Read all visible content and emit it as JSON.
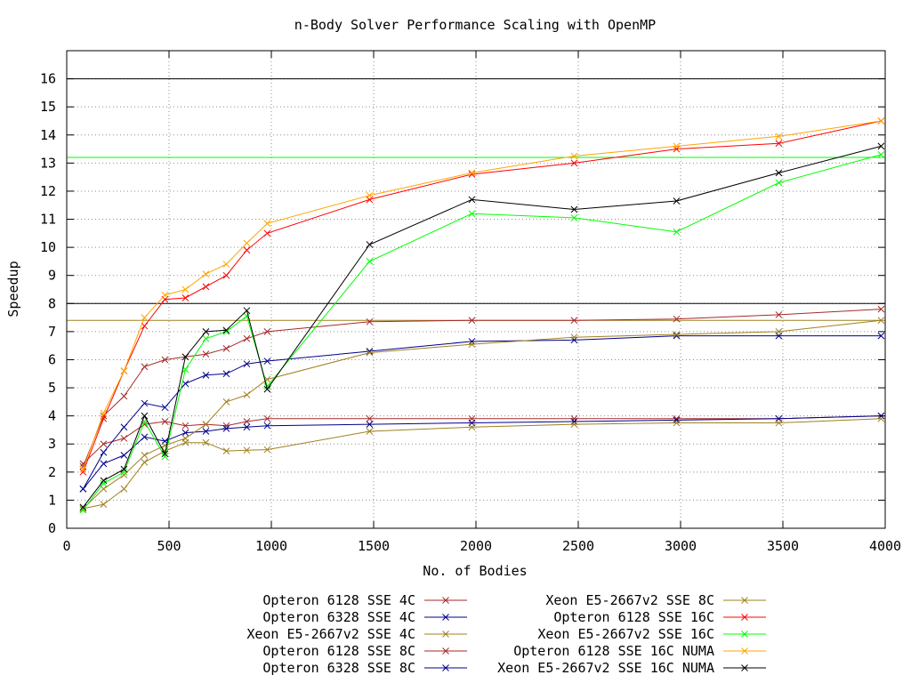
{
  "chart_data": {
    "type": "line",
    "title": "n-Body Solver Performance Scaling with OpenMP",
    "xlabel": "No. of Bodies",
    "ylabel": "Speedup",
    "xlim": [
      0,
      4000
    ],
    "ylim": [
      0,
      17
    ],
    "xticks": [
      0,
      500,
      1000,
      1500,
      2000,
      2500,
      3000,
      3500,
      4000
    ],
    "yticks": [
      0,
      1,
      2,
      3,
      4,
      5,
      6,
      7,
      8,
      9,
      10,
      11,
      12,
      13,
      14,
      15,
      16
    ],
    "grid": true,
    "grid_style": "dotted",
    "legend_position": "bottom",
    "reference_lines": [
      {
        "y": 16,
        "color": "#000000"
      },
      {
        "y": 13.2,
        "color": "#00ff00"
      },
      {
        "y": 8,
        "color": "#000000"
      },
      {
        "y": 7.4,
        "color": "#a08020"
      }
    ],
    "x": [
      80,
      180,
      280,
      380,
      480,
      580,
      680,
      780,
      880,
      980,
      1480,
      1980,
      2480,
      2980,
      3480,
      3980
    ],
    "series": [
      {
        "name": "Opteron 6128 SSE 4C",
        "color": "#a52a2a",
        "values": [
          2.3,
          3.0,
          3.2,
          3.7,
          3.8,
          3.65,
          3.7,
          3.65,
          3.8,
          3.9,
          3.9,
          3.9,
          3.9,
          3.9,
          3.9,
          4.0
        ]
      },
      {
        "name": "Opteron 6328 SSE 4C",
        "color": "#00008b",
        "values": [
          1.4,
          2.3,
          2.6,
          3.25,
          3.1,
          3.4,
          3.45,
          3.55,
          3.6,
          3.65,
          3.7,
          3.75,
          3.8,
          3.85,
          3.9,
          4.0
        ]
      },
      {
        "name": "Xeon E5-2667v2 SSE 4C",
        "color": "#a08020",
        "values": [
          0.7,
          0.85,
          1.4,
          2.35,
          2.75,
          3.05,
          3.05,
          2.75,
          2.78,
          2.8,
          3.45,
          3.6,
          3.7,
          3.75,
          3.75,
          3.9
        ]
      },
      {
        "name": "Opteron 6128 SSE 8C",
        "color": "#a52a2a",
        "values": [
          2.2,
          4.0,
          4.7,
          5.75,
          6.0,
          6.1,
          6.2,
          6.4,
          6.75,
          7.0,
          7.35,
          7.4,
          7.4,
          7.45,
          7.6,
          7.8
        ]
      },
      {
        "name": "Opteron 6328 SSE 8C",
        "color": "#00008b",
        "values": [
          1.4,
          2.7,
          3.6,
          4.45,
          4.3,
          5.15,
          5.45,
          5.5,
          5.85,
          5.95,
          6.3,
          6.65,
          6.7,
          6.85,
          6.85,
          6.85
        ]
      },
      {
        "name": "Xeon E5-2667v2 SSE 8C",
        "color": "#a08020",
        "values": [
          0.7,
          1.4,
          1.9,
          2.6,
          2.95,
          3.2,
          3.7,
          4.5,
          4.75,
          5.3,
          6.25,
          6.55,
          6.8,
          6.9,
          7.0,
          7.4
        ]
      },
      {
        "name": "Opteron 6128 SSE 16C",
        "color": "#ff0000",
        "values": [
          2.0,
          3.9,
          5.6,
          7.2,
          8.15,
          8.2,
          8.6,
          9.0,
          9.9,
          10.5,
          11.7,
          12.6,
          13.0,
          13.5,
          13.7,
          14.5
        ]
      },
      {
        "name": "Xeon E5-2667v2 SSE 16C",
        "color": "#00ff00",
        "values": [
          0.65,
          1.6,
          2.0,
          3.8,
          2.55,
          5.65,
          6.75,
          7.0,
          7.55,
          5.05,
          9.5,
          11.2,
          11.05,
          10.55,
          12.3,
          13.3
        ]
      },
      {
        "name": "Opteron 6128 SSE 16C NUMA",
        "color": "#ffa500",
        "values": [
          2.1,
          4.1,
          5.6,
          7.5,
          8.3,
          8.5,
          9.05,
          9.4,
          10.15,
          10.85,
          11.85,
          12.65,
          13.25,
          13.6,
          13.95,
          14.5
        ]
      },
      {
        "name": "Xeon E5-2667v2 SSE 16C NUMA",
        "color": "#000000",
        "values": [
          0.75,
          1.7,
          2.1,
          4.0,
          2.65,
          6.1,
          7.0,
          7.05,
          7.75,
          4.95,
          10.1,
          11.7,
          11.35,
          11.65,
          12.65,
          13.6
        ]
      }
    ]
  }
}
